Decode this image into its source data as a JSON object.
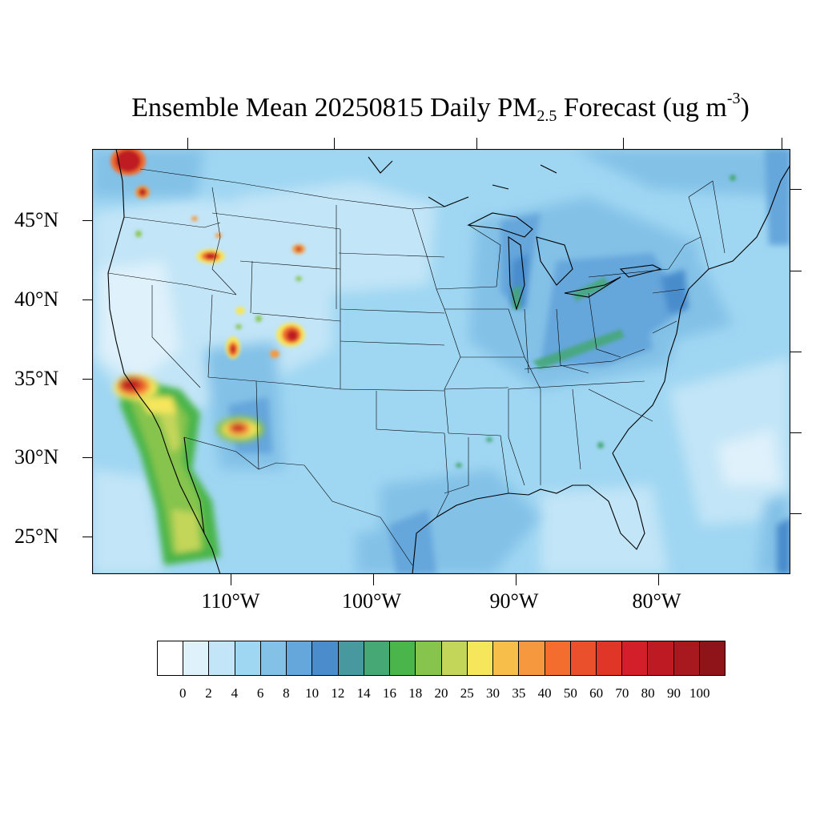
{
  "title": {
    "prefix": "Ensemble Mean 20250815 Daily PM",
    "subscript": "2.5",
    "middle": " Forecast (ug m",
    "superscript": "-3",
    "suffix": ")"
  },
  "latitude_labels": [
    "45°N",
    "40°N",
    "35°N",
    "30°N",
    "25°N"
  ],
  "longitude_labels": [
    "110°W",
    "100°W",
    "90°W",
    "80°W"
  ],
  "colorbar": {
    "colors": [
      "#ffffff",
      "#dff1fb",
      "#c2e5f7",
      "#9fd6f2",
      "#83c1e7",
      "#65a6db",
      "#4a8ccc",
      "#47999f",
      "#45a875",
      "#4ab54a",
      "#86c44e",
      "#c3d65a",
      "#f6e65b",
      "#f8be4a",
      "#f6983d",
      "#f26d2e",
      "#e9502b",
      "#df3628",
      "#d31f2a",
      "#be1a24",
      "#a8181f",
      "#8e141a"
    ],
    "tick_labels": [
      "0",
      "2",
      "4",
      "6",
      "8",
      "10",
      "12",
      "14",
      "16",
      "18",
      "20",
      "25",
      "30",
      "35",
      "40",
      "50",
      "60",
      "70",
      "80",
      "90",
      "100"
    ]
  }
}
